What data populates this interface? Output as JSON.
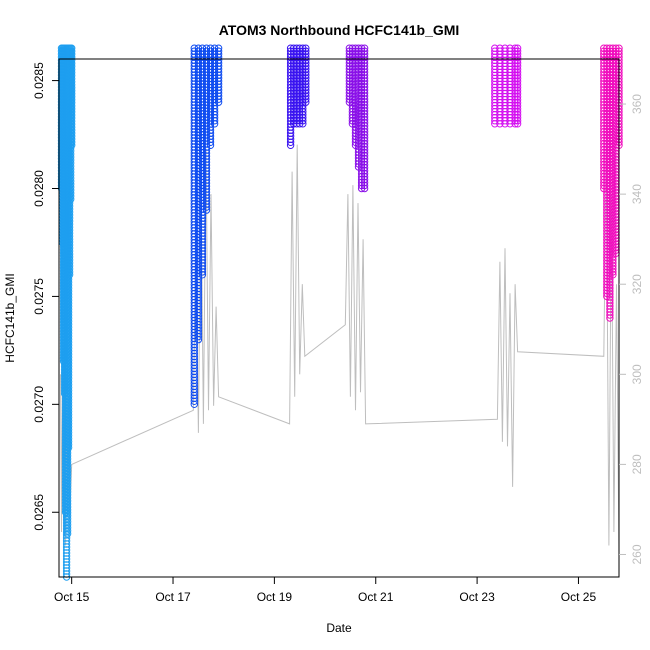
{
  "chart_data": {
    "type": "scatter",
    "title": "ATOM3 Northbound HCFC141b_GMI",
    "xlabel": "Date",
    "ylabel": "HCFC141b_GMI",
    "x_unit": "days since Oct 14 00:00",
    "xlim": [
      14.75,
      25.8
    ],
    "ylim": [
      0.0262,
      0.0286
    ],
    "x_ticks": [
      {
        "value": 15,
        "label": "Oct 15"
      },
      {
        "value": 17,
        "label": "Oct 17"
      },
      {
        "value": 19,
        "label": "Oct 19"
      },
      {
        "value": 21,
        "label": "Oct 21"
      },
      {
        "value": 23,
        "label": "Oct 23"
      },
      {
        "value": 25,
        "label": "Oct 25"
      }
    ],
    "y_ticks": [
      {
        "value": 0.0265,
        "label": "0.0265"
      },
      {
        "value": 0.027,
        "label": "0.0270"
      },
      {
        "value": 0.0275,
        "label": "0.0275"
      },
      {
        "value": 0.028,
        "label": "0.0280"
      },
      {
        "value": 0.0285,
        "label": "0.0285"
      }
    ],
    "y2_ticks": [
      {
        "value": 260,
        "label": "260"
      },
      {
        "value": 280,
        "label": "280"
      },
      {
        "value": 300,
        "label": "300"
      },
      {
        "value": 320,
        "label": "320"
      },
      {
        "value": 340,
        "label": "340"
      },
      {
        "value": 360,
        "label": "360"
      }
    ],
    "y2lim": [
      255,
      370
    ],
    "grid": false,
    "series": [
      {
        "color": "#1E9FF0",
        "x": [
          14.8,
          14.82,
          14.84,
          14.86,
          14.88,
          14.9,
          14.92,
          14.94,
          14.96,
          14.98,
          15.0
        ],
        "y_top": [
          0.02865,
          0.02865,
          0.02865,
          0.02865,
          0.02865,
          0.02865,
          0.02865,
          0.02865,
          0.02865,
          0.02865,
          0.02865
        ],
        "y_bottom": [
          0.028,
          0.02775,
          0.0272,
          0.02705,
          0.0265,
          0.0262,
          0.0264,
          0.0268,
          0.0276,
          0.02795,
          0.0282
        ]
      },
      {
        "color": "#0F4CF0",
        "x": [
          17.42,
          17.5,
          17.58,
          17.66,
          17.74,
          17.82,
          17.9
        ],
        "y_top": [
          0.02865,
          0.02865,
          0.02865,
          0.02865,
          0.02865,
          0.02865,
          0.02865
        ],
        "y_bottom": [
          0.027,
          0.0273,
          0.0276,
          0.0279,
          0.0282,
          0.0283,
          0.0284
        ]
      },
      {
        "color": "#3A14F0",
        "x": [
          19.32,
          19.38,
          19.44,
          19.5,
          19.56,
          19.62
        ],
        "y_top": [
          0.02865,
          0.02865,
          0.02865,
          0.02865,
          0.02865,
          0.02865
        ],
        "y_bottom": [
          0.0282,
          0.0283,
          0.0283,
          0.0283,
          0.0283,
          0.0284
        ]
      },
      {
        "color": "#8A10E8",
        "x": [
          20.48,
          20.54,
          20.6,
          20.66,
          20.72,
          20.78
        ],
        "y_top": [
          0.02865,
          0.02865,
          0.02865,
          0.02865,
          0.02865,
          0.02865
        ],
        "y_bottom": [
          0.0284,
          0.0283,
          0.0282,
          0.0281,
          0.028,
          0.028
        ]
      },
      {
        "color": "#D40FF0",
        "x": [
          23.35,
          23.45,
          23.55,
          23.65,
          23.75,
          23.8
        ],
        "y_top": [
          0.02865,
          0.02865,
          0.02865,
          0.02865,
          0.02865,
          0.02865
        ],
        "y_bottom": [
          0.0283,
          0.0283,
          0.0283,
          0.0283,
          0.0283,
          0.0283
        ]
      },
      {
        "color": "#F00FBE",
        "x": [
          25.5,
          25.56,
          25.62,
          25.68,
          25.74,
          25.8
        ],
        "y_top": [
          0.02865,
          0.02865,
          0.02865,
          0.02865,
          0.02865,
          0.02865
        ],
        "y_bottom": [
          0.028,
          0.0275,
          0.0274,
          0.0276,
          0.0277,
          0.0282
        ]
      }
    ],
    "secondary_line": {
      "color": "#bebebe",
      "x": [
        14.78,
        14.8,
        14.82,
        14.84,
        14.86,
        14.88,
        14.9,
        14.92,
        14.94,
        14.96,
        15.0,
        17.4,
        17.45,
        17.5,
        17.55,
        17.6,
        17.65,
        17.7,
        17.75,
        17.8,
        17.85,
        17.9,
        19.3,
        19.35,
        19.4,
        19.45,
        19.5,
        19.55,
        19.6,
        20.4,
        20.45,
        20.5,
        20.55,
        20.6,
        20.65,
        20.7,
        20.75,
        20.8,
        23.4,
        23.45,
        23.5,
        23.55,
        23.6,
        23.65,
        23.7,
        23.75,
        23.8,
        25.5,
        25.55,
        25.6,
        25.65,
        25.7,
        25.75,
        25.8
      ],
      "y": [
        300,
        265,
        305,
        268,
        310,
        262,
        300,
        270,
        295,
        268,
        280,
        292,
        330,
        287,
        345,
        289,
        350,
        292,
        340,
        293,
        315,
        295,
        289,
        345,
        295,
        351,
        300,
        320,
        304,
        311,
        340,
        295,
        342,
        292,
        338,
        296,
        330,
        289,
        290,
        325,
        285,
        328,
        284,
        318,
        275,
        320,
        305,
        304,
        350,
        262,
        340,
        265,
        320,
        260
      ]
    }
  }
}
